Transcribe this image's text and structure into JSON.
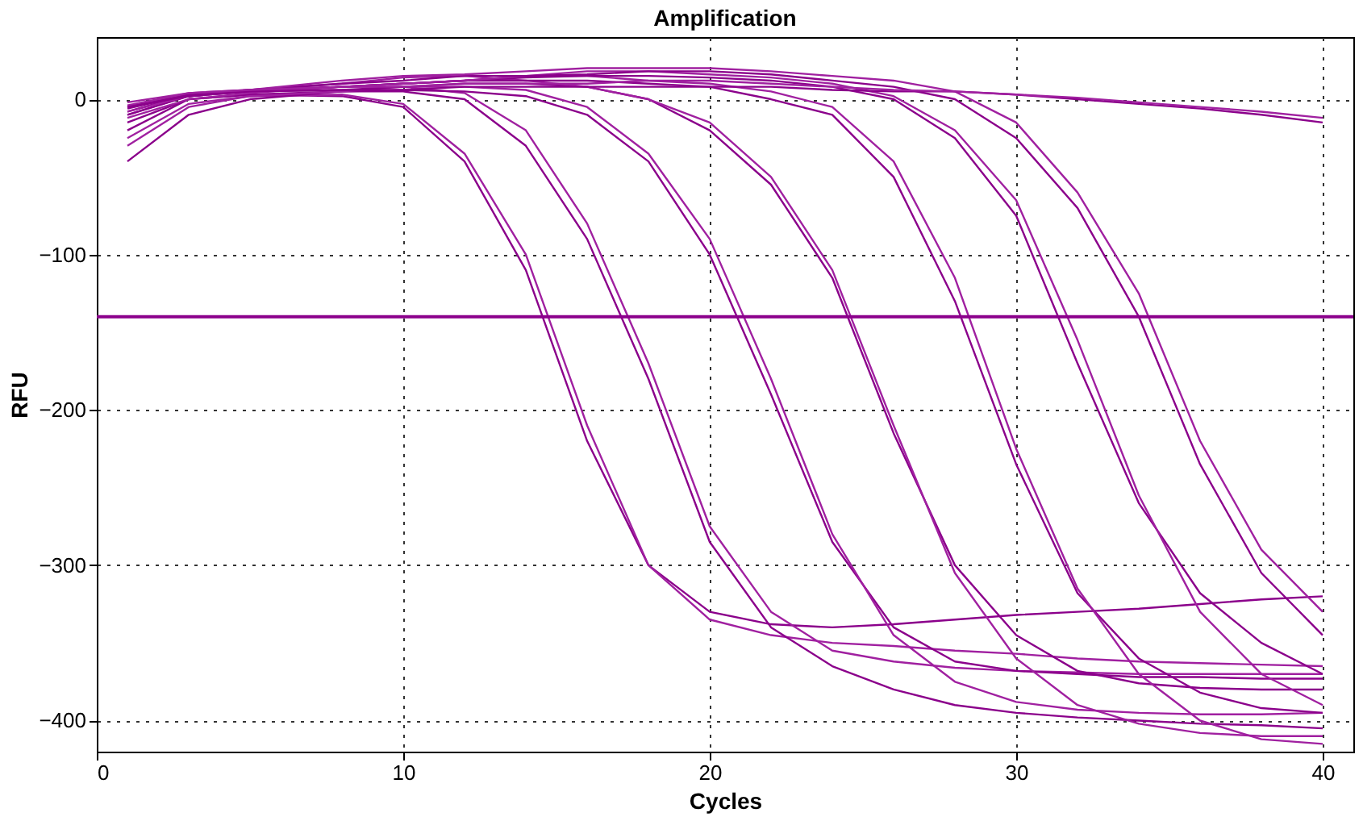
{
  "chart_data": {
    "type": "line",
    "title": "Amplification",
    "xlabel": "Cycles",
    "ylabel": "RFU",
    "x": [
      1,
      3,
      5,
      8,
      10,
      12,
      14,
      16,
      18,
      20,
      22,
      24,
      26,
      28,
      30,
      32,
      34,
      36,
      38,
      40
    ],
    "xlim": [
      0,
      41
    ],
    "xticks": [
      0,
      10,
      20,
      30,
      40
    ],
    "ylim": [
      -420,
      40
    ],
    "yticks": [
      0,
      -100,
      -200,
      -300,
      -400
    ],
    "grid": true,
    "legend": false,
    "marker": "none",
    "line_style": "solid",
    "ref_lines": [
      {
        "axis": "y",
        "value": -140,
        "color": "#8b008b"
      }
    ],
    "series": [
      {
        "color": "#8b008b",
        "values": [
          -20,
          0,
          3,
          2,
          -5,
          -40,
          -110,
          -220,
          -300,
          -330,
          -338,
          -340,
          -338,
          -335,
          -332,
          -330,
          -328,
          -325,
          -322,
          -320
        ]
      },
      {
        "color": "#a020a0",
        "values": [
          -30,
          -5,
          2,
          3,
          -3,
          -35,
          -100,
          -210,
          -300,
          -335,
          -345,
          -350,
          -352,
          -355,
          -357,
          -360,
          -362,
          -363,
          -364,
          -365
        ]
      },
      {
        "color": "#8b008b",
        "values": [
          -40,
          -10,
          0,
          5,
          5,
          0,
          -30,
          -90,
          -180,
          -285,
          -340,
          -365,
          -380,
          -390,
          -395,
          -398,
          -400,
          -402,
          -403,
          -405
        ]
      },
      {
        "color": "#a020a0",
        "values": [
          -10,
          2,
          5,
          8,
          8,
          4,
          -20,
          -80,
          -170,
          -275,
          -330,
          -355,
          -362,
          -366,
          -368,
          -369,
          -370,
          -370,
          -370,
          -370
        ]
      },
      {
        "color": "#8b008b",
        "values": [
          -15,
          0,
          3,
          5,
          6,
          5,
          2,
          -10,
          -40,
          -100,
          -190,
          -285,
          -340,
          -362,
          -368,
          -370,
          -372,
          -372,
          -373,
          -373
        ]
      },
      {
        "color": "#a020a0",
        "values": [
          -25,
          -3,
          2,
          5,
          8,
          8,
          6,
          -5,
          -35,
          -90,
          -180,
          -280,
          -345,
          -375,
          -388,
          -393,
          -395,
          -396,
          -396,
          -395
        ]
      },
      {
        "color": "#8b008b",
        "values": [
          -10,
          2,
          5,
          6,
          8,
          10,
          10,
          8,
          0,
          -20,
          -55,
          -115,
          -215,
          -300,
          -345,
          -368,
          -376,
          -379,
          -380,
          -380
        ]
      },
      {
        "color": "#a020a0",
        "values": [
          -5,
          2,
          6,
          10,
          14,
          15,
          12,
          8,
          0,
          -15,
          -50,
          -110,
          -210,
          -305,
          -360,
          -390,
          -402,
          -408,
          -410,
          -410
        ]
      },
      {
        "color": "#8b008b",
        "values": [
          -8,
          3,
          5,
          8,
          10,
          12,
          12,
          12,
          10,
          8,
          0,
          -10,
          -50,
          -130,
          -235,
          -318,
          -360,
          -382,
          -392,
          -395
        ]
      },
      {
        "color": "#a020a0",
        "values": [
          -12,
          0,
          4,
          8,
          10,
          12,
          15,
          15,
          12,
          10,
          5,
          -5,
          -40,
          -115,
          -225,
          -315,
          -370,
          -400,
          -412,
          -415
        ]
      },
      {
        "color": "#8b008b",
        "values": [
          -5,
          3,
          6,
          8,
          10,
          12,
          14,
          15,
          15,
          14,
          12,
          8,
          0,
          -25,
          -75,
          -170,
          -260,
          -318,
          -350,
          -370
        ]
      },
      {
        "color": "#a020a0",
        "values": [
          -8,
          2,
          5,
          8,
          10,
          12,
          15,
          18,
          18,
          16,
          14,
          10,
          2,
          -20,
          -65,
          -155,
          -255,
          -330,
          -370,
          -390
        ]
      },
      {
        "color": "#8b008b",
        "values": [
          -6,
          3,
          6,
          10,
          12,
          15,
          15,
          16,
          18,
          18,
          16,
          12,
          8,
          0,
          -25,
          -70,
          -140,
          -235,
          -305,
          -345
        ]
      },
      {
        "color": "#a020a0",
        "values": [
          -4,
          4,
          6,
          12,
          15,
          16,
          18,
          20,
          20,
          20,
          18,
          15,
          12,
          5,
          -15,
          -60,
          -125,
          -220,
          -290,
          -330
        ]
      },
      {
        "color": "#8b008b",
        "values": [
          -5,
          2,
          5,
          6,
          6,
          8,
          8,
          8,
          8,
          8,
          8,
          6,
          5,
          5,
          3,
          0,
          -3,
          -6,
          -10,
          -15
        ]
      },
      {
        "color": "#a020a0",
        "values": [
          -2,
          4,
          6,
          8,
          8,
          10,
          10,
          10,
          12,
          12,
          10,
          8,
          6,
          5,
          3,
          1,
          -2,
          -5,
          -8,
          -12
        ]
      }
    ]
  }
}
